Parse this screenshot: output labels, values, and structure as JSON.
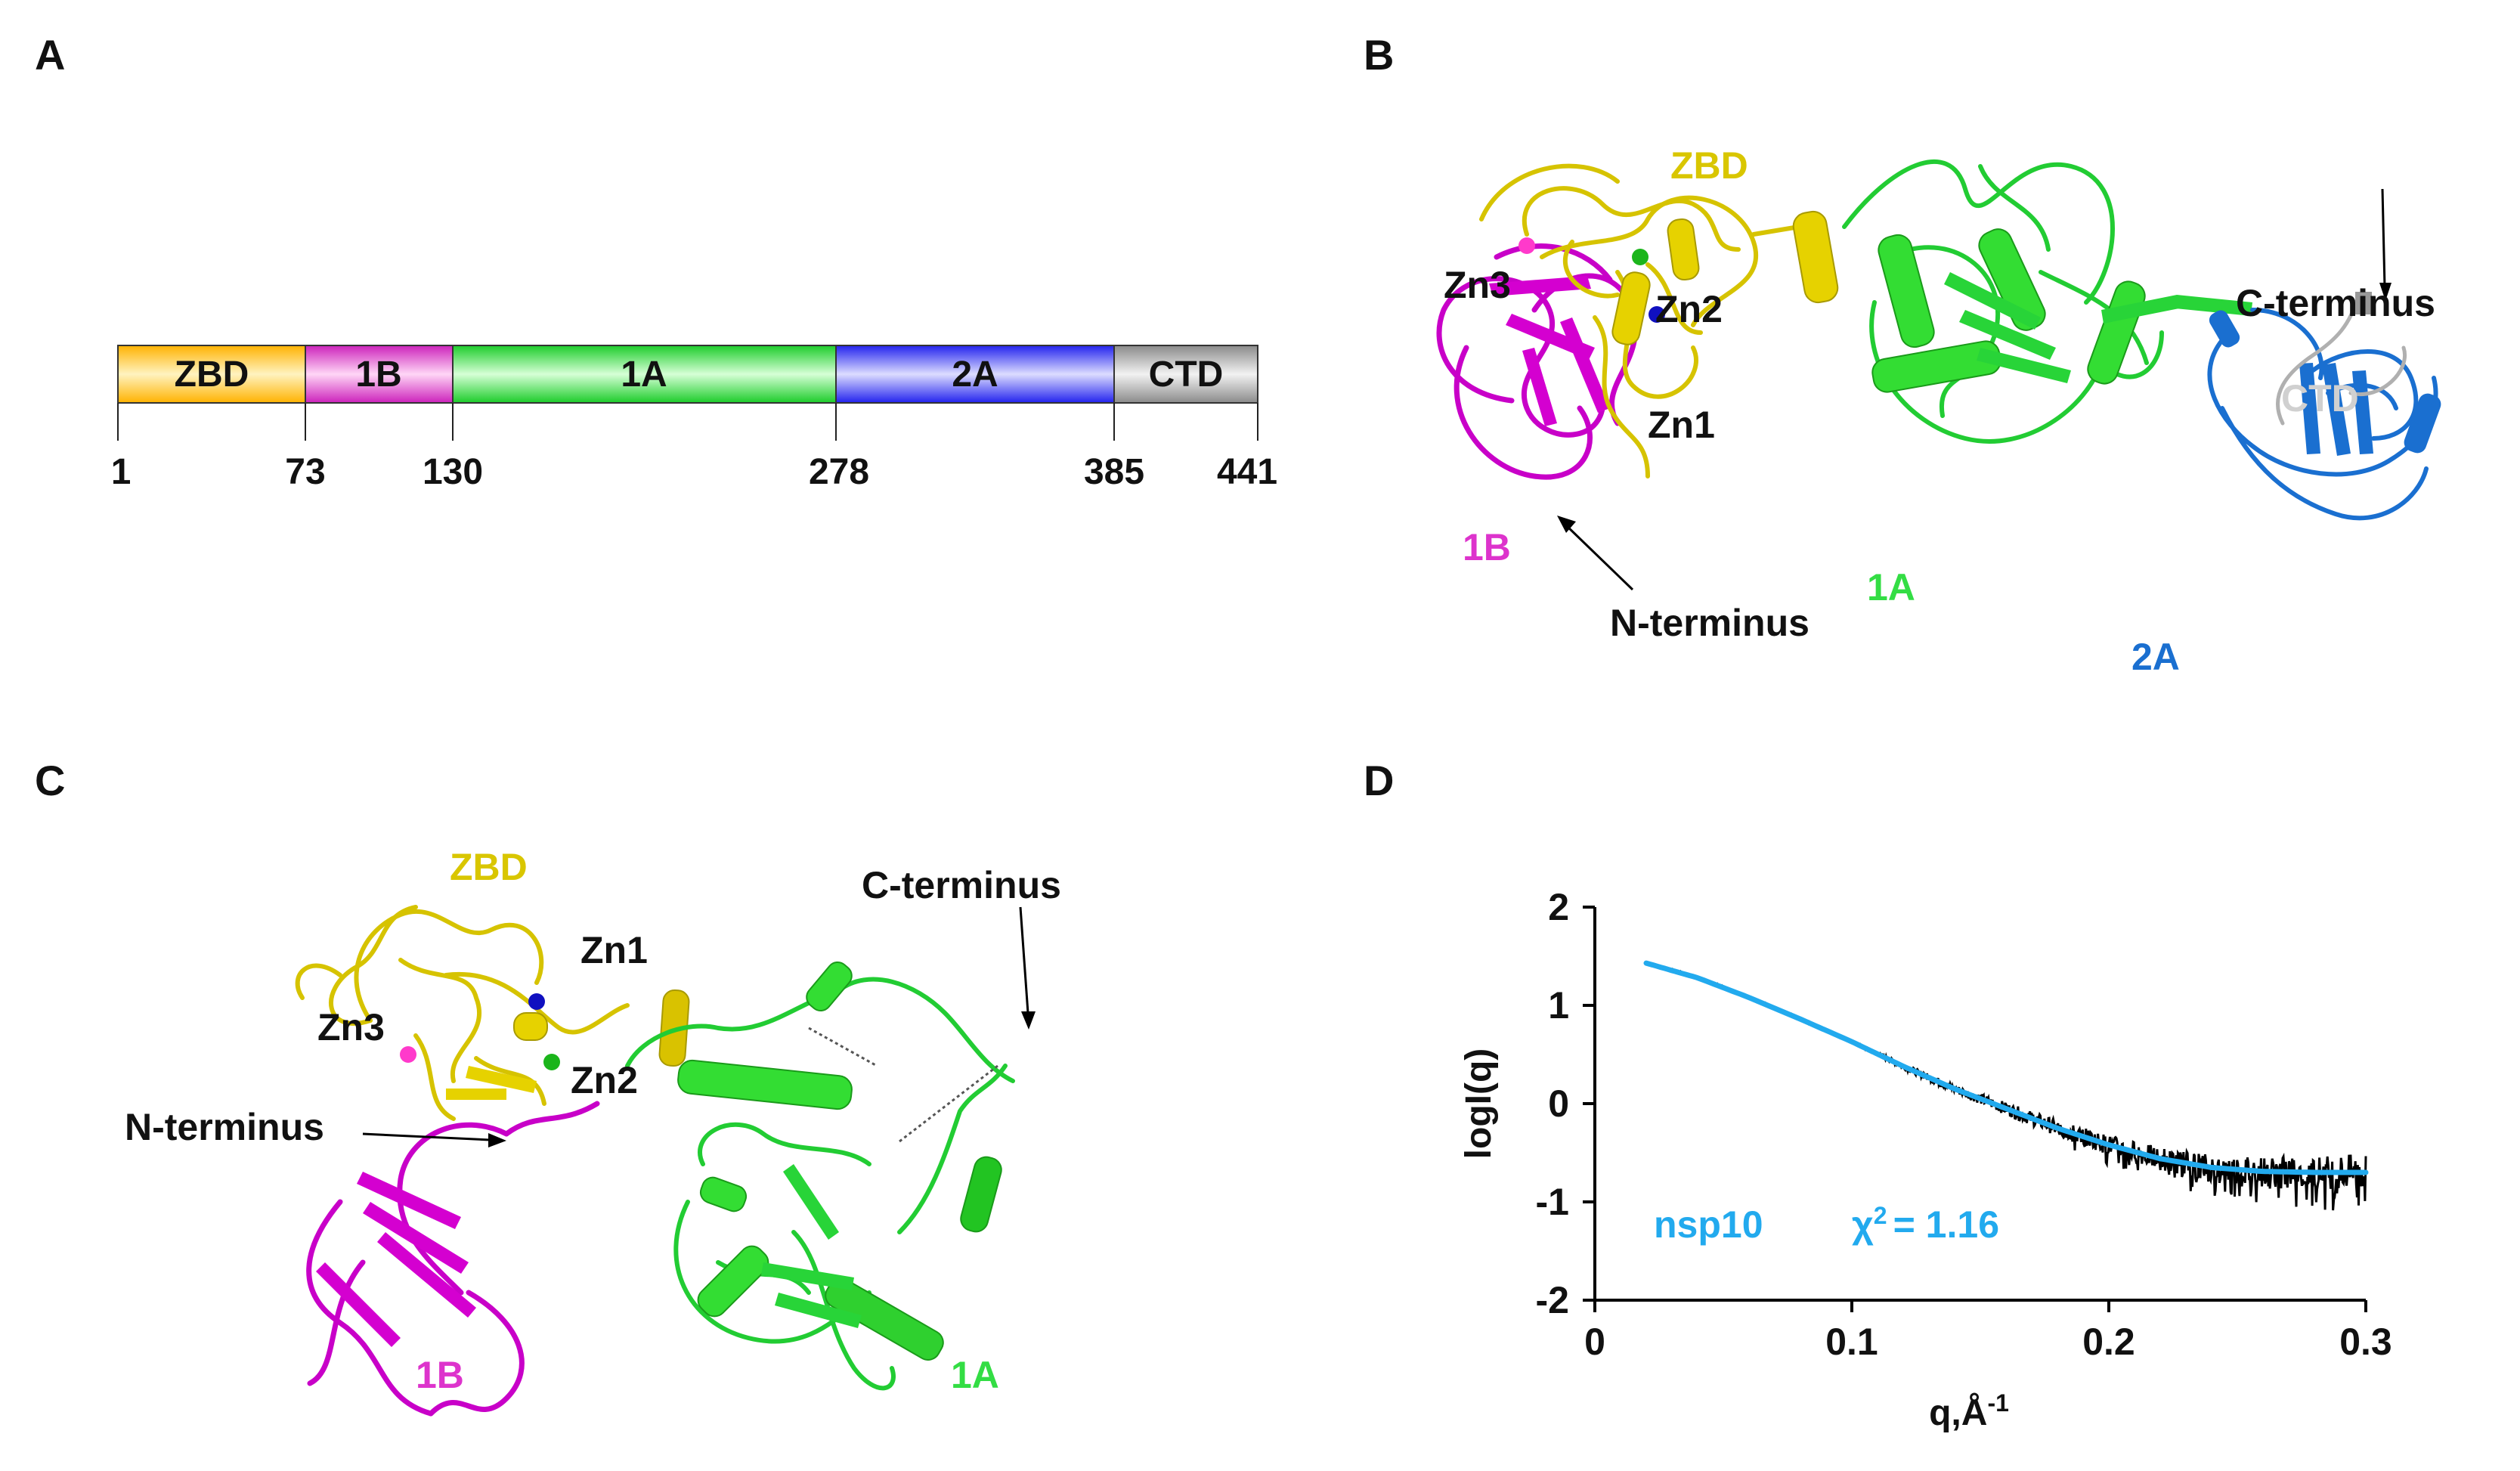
{
  "panels": {
    "a": "A",
    "b": "B",
    "c": "C",
    "d": "D"
  },
  "colors": {
    "zbd": "#ffc83a",
    "1b": "#dd33cc",
    "1a": "#33dd44",
    "2a": "#3b3bff",
    "ctd": "#aaaaaa",
    "zbd_struct": "#d9c600",
    "1b_struct": "#c800c8",
    "1a_struct": "#22cc22",
    "2a_struct": "#1a6fd0",
    "ctd_struct": "#cccccc",
    "fit": "#22aaee",
    "zn1": "#1010c0",
    "zn2": "#1bb51b",
    "zn3": "#ff33cc"
  },
  "domain_map": {
    "segments": [
      {
        "label": "ZBD",
        "start": 1,
        "end": 73,
        "color": "#ffc83a"
      },
      {
        "label": "1B",
        "start": 73,
        "end": 130,
        "color": "#dd33cc"
      },
      {
        "label": "1A",
        "start": 130,
        "end": 278,
        "color": "#33dd44"
      },
      {
        "label": "2A",
        "start": 278,
        "end": 385,
        "color": "#3b3bff"
      },
      {
        "label": "CTD",
        "start": 385,
        "end": 441,
        "color": "#aaaaaa"
      }
    ],
    "ticks": [
      "1",
      "73",
      "130",
      "278",
      "385",
      "441"
    ]
  },
  "structure_b": {
    "labels": {
      "zbd": "ZBD",
      "zn3": "Zn3",
      "zn2": "Zn2",
      "zn1": "Zn1",
      "one_b": "1B",
      "one_a": "1A",
      "two_a": "2A",
      "ctd": "CTD",
      "n_term": "N-terminus",
      "c_term": "C-terminus"
    }
  },
  "structure_c": {
    "labels": {
      "zbd": "ZBD",
      "zn1": "Zn1",
      "zn3": "Zn3",
      "zn2": "Zn2",
      "n_term": "N-terminus",
      "c_term": "C-terminus",
      "one_b": "1B",
      "one_a": "1A"
    }
  },
  "chart_data": {
    "type": "line",
    "xlabel": "q,Å",
    "xlabel_sup": "-1",
    "ylabel": "logI(q)",
    "xlim": [
      0,
      0.3
    ],
    "ylim": [
      -2,
      2
    ],
    "x_ticks": [
      "0",
      "0.1",
      "0.2",
      "0.3"
    ],
    "y_ticks": [
      "2",
      "1",
      "0",
      "-1",
      "-2"
    ],
    "annotation_sample": "nsp10",
    "annotation_chi": "χ",
    "annotation_chi_sup": "2",
    "annotation_value": "= 1.16",
    "series": [
      {
        "kind": "experimental",
        "color": "#000000",
        "x": [
          0.02,
          0.04,
          0.06,
          0.08,
          0.1,
          0.12,
          0.14,
          0.16,
          0.18,
          0.2,
          0.22,
          0.24,
          0.26,
          0.28,
          0.3
        ],
        "y": [
          1.43,
          1.28,
          1.08,
          0.86,
          0.63,
          0.38,
          0.15,
          -0.05,
          -0.25,
          -0.42,
          -0.56,
          -0.65,
          -0.69,
          -0.7,
          -0.7
        ]
      },
      {
        "kind": "fit",
        "color": "#22aaee",
        "x": [
          0.02,
          0.04,
          0.06,
          0.08,
          0.1,
          0.12,
          0.14,
          0.16,
          0.18,
          0.2,
          0.22,
          0.24,
          0.26,
          0.28,
          0.3
        ],
        "y": [
          1.43,
          1.28,
          1.08,
          0.86,
          0.63,
          0.38,
          0.15,
          -0.05,
          -0.25,
          -0.42,
          -0.56,
          -0.65,
          -0.69,
          -0.7,
          -0.7
        ]
      }
    ]
  }
}
